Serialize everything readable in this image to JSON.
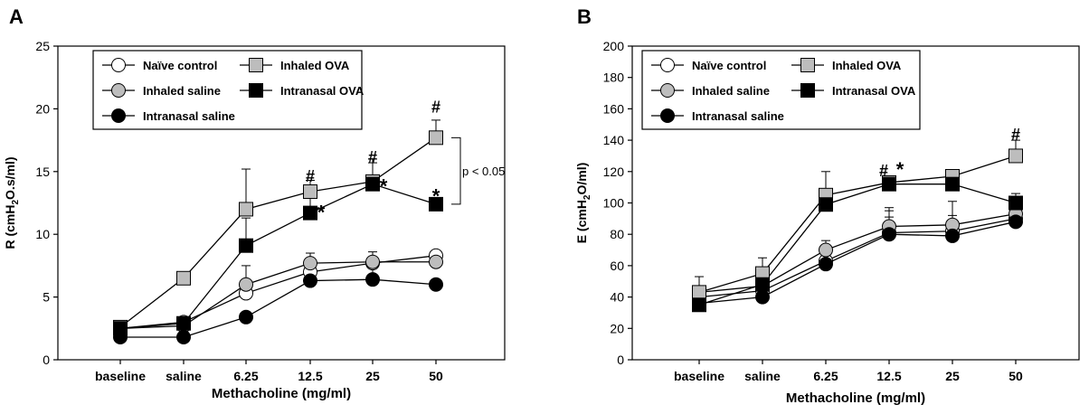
{
  "chart_data": [
    {
      "type": "line",
      "panel_label": "A",
      "xlabel": "Methacholine (mg/ml)",
      "ylabel_parts": [
        "R (cmH",
        "2",
        "O.s/ml)"
      ],
      "categories": [
        "baseline",
        "saline",
        "6.25",
        "12.5",
        "25",
        "50"
      ],
      "ylim": [
        0,
        25
      ],
      "yticks": [
        0,
        5,
        10,
        15,
        20,
        25
      ],
      "grid": false,
      "legend_position": "top-left",
      "series": [
        {
          "name": "Naïve control",
          "marker": "circle",
          "fill": "#ffffff",
          "values": [
            2.5,
            3.0,
            5.3,
            7.0,
            7.7,
            8.3
          ],
          "err": [
            0.2,
            0.2,
            0.4,
            0.5,
            0.4,
            0.3
          ]
        },
        {
          "name": "Inhaled saline",
          "marker": "circle",
          "fill": "#bdbdbd",
          "values": [
            2.5,
            2.7,
            6.0,
            7.7,
            7.8,
            7.8
          ],
          "err": [
            0.2,
            0.2,
            1.5,
            0.8,
            0.8,
            0.7
          ]
        },
        {
          "name": "Intranasal saline",
          "marker": "circle",
          "fill": "#000000",
          "values": [
            1.8,
            1.8,
            3.4,
            6.3,
            6.4,
            6.0
          ],
          "err": [
            0.1,
            0.2,
            0.3,
            0.9,
            0.9,
            0.4
          ]
        },
        {
          "name": "Inhaled OVA",
          "marker": "square",
          "fill": "#bdbdbd",
          "values": [
            2.6,
            6.5,
            12.0,
            13.4,
            14.2,
            17.7
          ],
          "err": [
            0.2,
            0.3,
            3.2,
            0.9,
            1.5,
            1.4
          ]
        },
        {
          "name": "Intranasal OVA",
          "marker": "square",
          "fill": "#000000",
          "values": [
            2.5,
            2.9,
            9.1,
            11.7,
            14.0,
            12.4
          ],
          "err": [
            0.2,
            0.3,
            2.2,
            1.4,
            2.0,
            0.2
          ]
        }
      ],
      "annotations": [
        {
          "text": "#",
          "category": "12.5",
          "y": 14.7
        },
        {
          "text": "#",
          "category": "25",
          "y": 16.2
        },
        {
          "text": "#",
          "category": "50",
          "y": 20.2
        },
        {
          "text": "*",
          "category": "12.5",
          "y": 11.7,
          "offset": "right"
        },
        {
          "text": "*",
          "category": "25",
          "y": 13.8,
          "offset": "right"
        },
        {
          "text": "*",
          "category": "50",
          "y": 13.0
        }
      ],
      "bracket": {
        "text": "p < 0.05",
        "from": 17.7,
        "to": 12.4
      }
    },
    {
      "type": "line",
      "panel_label": "B",
      "xlabel": "Methacholine (mg/ml)",
      "ylabel_parts": [
        "E (cmH",
        "2",
        "O/ml)"
      ],
      "categories": [
        "baseline",
        "saline",
        "6.25",
        "12.5",
        "25",
        "50"
      ],
      "ylim": [
        0,
        200
      ],
      "yticks": [
        0,
        20,
        40,
        60,
        80,
        100,
        120,
        140,
        160,
        180,
        200
      ],
      "grid": false,
      "legend_position": "top-left",
      "series": [
        {
          "name": "Naïve control",
          "marker": "circle",
          "fill": "#ffffff",
          "values": [
            40,
            44,
            63,
            81,
            82,
            90
          ],
          "err": [
            3,
            4,
            5,
            10,
            10,
            10
          ]
        },
        {
          "name": "Inhaled saline",
          "marker": "circle",
          "fill": "#bdbdbd",
          "values": [
            43,
            47,
            70,
            85,
            86,
            93
          ],
          "err": [
            4,
            4,
            6,
            10,
            15,
            10
          ]
        },
        {
          "name": "Intranasal saline",
          "marker": "circle",
          "fill": "#000000",
          "values": [
            36,
            40,
            61,
            80,
            79,
            88
          ],
          "err": [
            3,
            4,
            6,
            17,
            10,
            16
          ]
        },
        {
          "name": "Inhaled OVA",
          "marker": "square",
          "fill": "#bdbdbd",
          "values": [
            43,
            55,
            105,
            113,
            117,
            130
          ],
          "err": [
            10,
            10,
            15,
            3,
            3,
            10
          ]
        },
        {
          "name": "Intranasal OVA",
          "marker": "square",
          "fill": "#000000",
          "values": [
            35,
            48,
            99,
            112,
            112,
            100
          ],
          "err": [
            3,
            8,
            8,
            3,
            3,
            6
          ]
        }
      ],
      "annotations": [
        {
          "text": "#",
          "category": "12.5",
          "y": 121,
          "offset": "left"
        },
        {
          "text": "*",
          "category": "12.5",
          "y": 121,
          "offset": "right"
        },
        {
          "text": "#",
          "category": "50",
          "y": 144
        }
      ]
    }
  ]
}
